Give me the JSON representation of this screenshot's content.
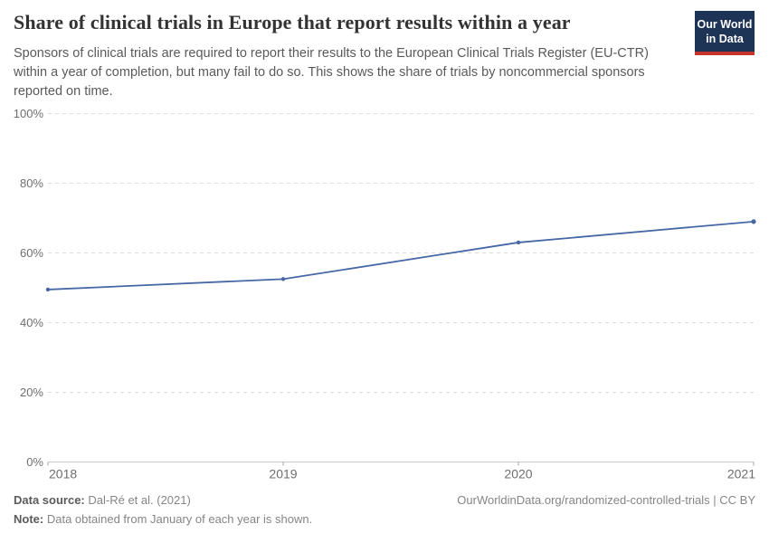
{
  "header": {
    "title": "Share of clinical trials in Europe that report results within a year",
    "subtitle": "Sponsors of clinical trials are required to report their results to the European Clinical Trials Register (EU-CTR) within a year of completion, but many fail to do so. This shows the share of trials by noncommercial sponsors reported on time.",
    "logo": {
      "line1": "Our World",
      "line2": "in Data",
      "bg_color": "#1d3456",
      "accent_color": "#c7342b"
    }
  },
  "chart_data": {
    "type": "line",
    "title": "Share of clinical trials in Europe that report results within a year",
    "x": [
      2018,
      2019,
      2020,
      2021
    ],
    "series": [
      {
        "name": "Share of trials by noncommercial sponsors reported on time",
        "values": [
          49.5,
          52.5,
          63,
          69
        ],
        "color": "#4767a5"
      }
    ],
    "xlabel": "",
    "ylabel": "",
    "ylim": [
      0,
      100
    ],
    "yticks": [
      0,
      20,
      40,
      60,
      80,
      100
    ],
    "ytick_suffix": "%",
    "grid": "horizontal-dashed",
    "legend_position": "none",
    "note": "Data obtained from January of each year is shown."
  },
  "footer": {
    "datasource_label": "Data source:",
    "datasource_value": "Dal-Ré et al. (2021)",
    "note_label": "Note:",
    "note_value": "Data obtained from January of each year is shown.",
    "attribution": "OurWorldinData.org/randomized-controlled-trials | CC BY"
  }
}
